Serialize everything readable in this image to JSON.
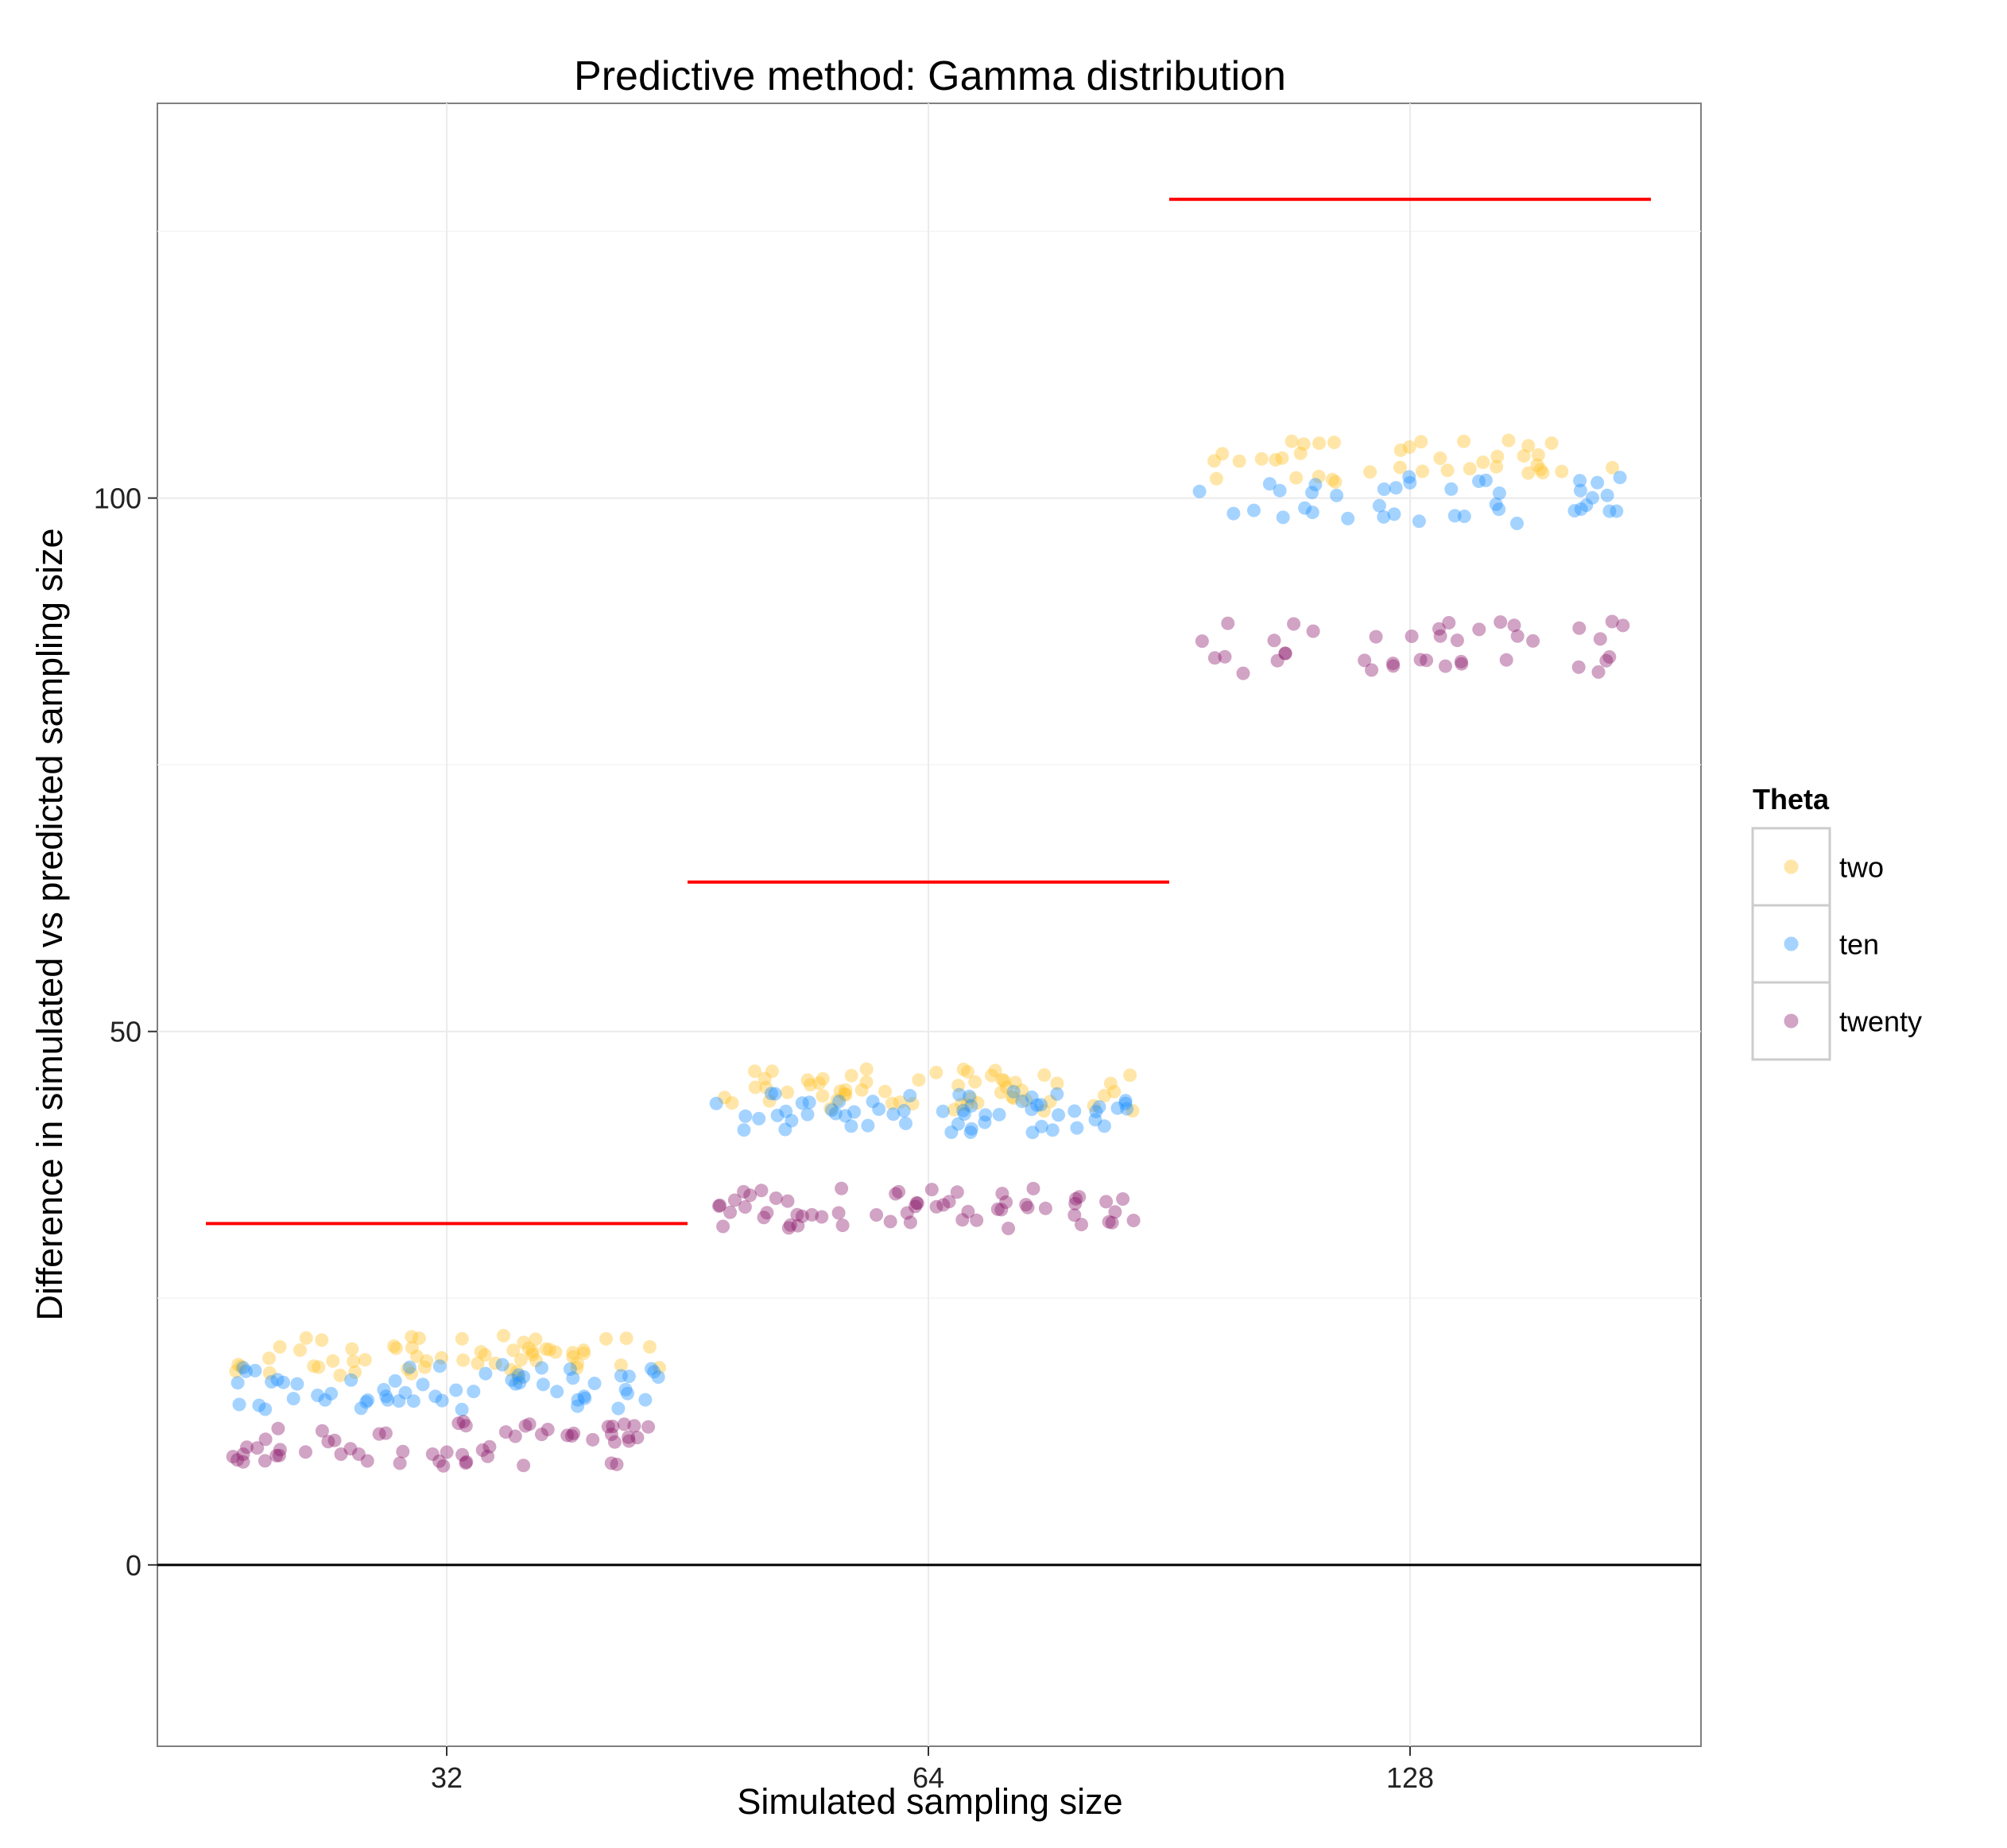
{
  "chart_data": {
    "type": "scatter",
    "title": "Predictive method: Gamma distribution",
    "xlabel": "Simulated sampling size",
    "ylabel": "Difference in simulated vs predicted sampling size",
    "categories": [
      "32",
      "64",
      "128"
    ],
    "yticks": [
      "0",
      "50",
      "100"
    ],
    "ylim": [
      -17,
      137
    ],
    "grid": true,
    "reference_line": {
      "y": 0,
      "color": "#000000"
    },
    "legend": {
      "title": "Theta",
      "placement": "right",
      "entries": [
        "two",
        "ten",
        "twenty"
      ]
    },
    "series": [
      {
        "name": "two",
        "color": "#FFC125",
        "values": [
          [
            20.5,
            18.5
          ],
          [
            45.5,
            43.5
          ],
          [
            104.5,
            102.5
          ]
        ]
      },
      {
        "name": "ten",
        "color": "#1E90FF",
        "values": [
          [
            17.8,
            15.5
          ],
          [
            43.5,
            41.5
          ],
          [
            101,
            98.5
          ]
        ]
      },
      {
        "name": "twenty",
        "color": "#8B1A6B",
        "values": [
          [
            12.5,
            10.2
          ],
          [
            34.5,
            32.5
          ],
          [
            87.5,
            84.5
          ]
        ]
      }
    ],
    "predicted_lines": {
      "color": "#FF0000",
      "values": [
        32,
        64,
        128
      ]
    }
  }
}
